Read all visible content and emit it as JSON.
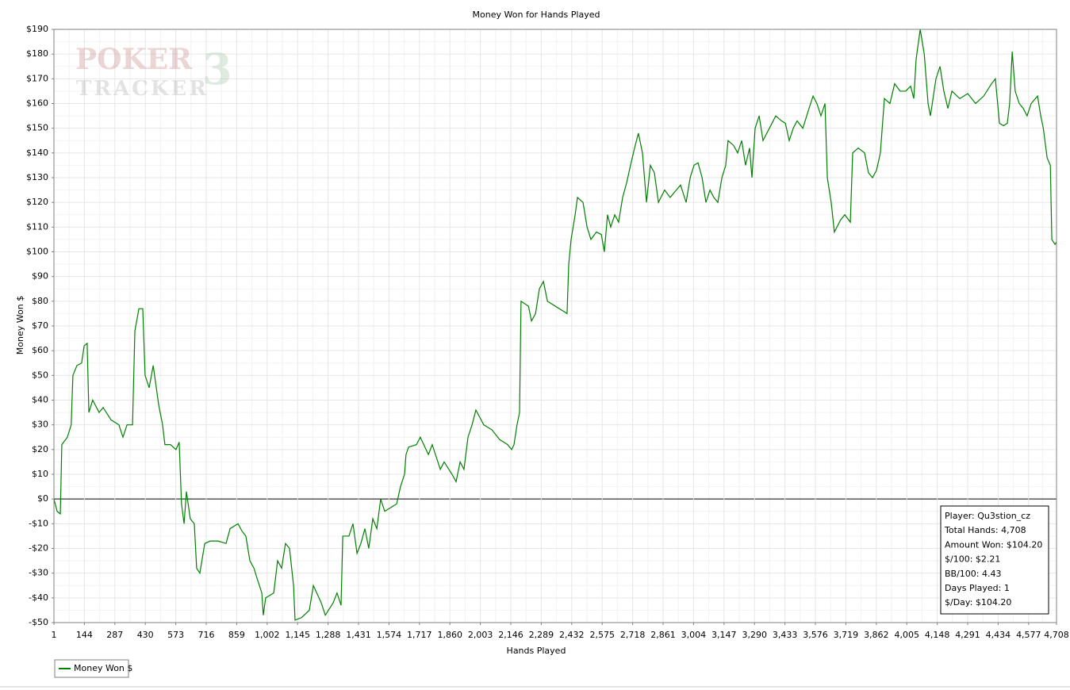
{
  "chart_data": {
    "type": "line",
    "title": "Money Won for Hands Played",
    "x_label": "Hands Played",
    "y_label": "Money Won $",
    "watermark": [
      "POKER",
      "TRACKER",
      "3"
    ],
    "info_box": [
      "Player: Qu3stion_cz",
      "Total Hands: 4,708",
      "Amount Won: $104.20",
      "$/100: $2.21",
      "BB/100: 4.43",
      "Days Played: 1",
      "$/Day: $104.20"
    ],
    "xlim": [
      1,
      4708
    ],
    "ylim": [
      -50,
      190
    ],
    "xticks": [
      1,
      144,
      287,
      430,
      573,
      716,
      859,
      {
        "value": 1002,
        "label": "1,002"
      },
      {
        "value": 1145,
        "label": "1,145"
      },
      {
        "value": 1288,
        "label": "1,288"
      },
      {
        "value": 1431,
        "label": "1,431"
      },
      {
        "value": 1574,
        "label": "1,574"
      },
      {
        "value": 1717,
        "label": "1,717"
      },
      {
        "value": 1860,
        "label": "1,860"
      },
      {
        "value": 2003,
        "label": "2,003"
      },
      {
        "value": 2146,
        "label": "2,146"
      },
      {
        "value": 2289,
        "label": "2,289"
      },
      {
        "value": 2432,
        "label": "2,432"
      },
      {
        "value": 2575,
        "label": "2,575"
      },
      {
        "value": 2718,
        "label": "2,718"
      },
      {
        "value": 2861,
        "label": "2,861"
      },
      {
        "value": 3004,
        "label": "3,004"
      },
      {
        "value": 3147,
        "label": "3,147"
      },
      {
        "value": 3290,
        "label": "3,290"
      },
      {
        "value": 3433,
        "label": "3,433"
      },
      {
        "value": 3576,
        "label": "3,576"
      },
      {
        "value": 3719,
        "label": "3,719"
      },
      {
        "value": 3862,
        "label": "3,862"
      },
      {
        "value": 4005,
        "label": "4,005"
      },
      {
        "value": 4148,
        "label": "4,148"
      },
      {
        "value": 4291,
        "label": "4,291"
      },
      {
        "value": 4434,
        "label": "4,434"
      },
      {
        "value": 4577,
        "label": "4,577"
      },
      {
        "value": 4708,
        "label": "4,708"
      }
    ],
    "yticks": [
      {
        "value": 190,
        "label": "$190"
      },
      {
        "value": 180,
        "label": "$180"
      },
      {
        "value": 170,
        "label": "$170"
      },
      {
        "value": 160,
        "label": "$160"
      },
      {
        "value": 150,
        "label": "$150"
      },
      {
        "value": 140,
        "label": "$140"
      },
      {
        "value": 130,
        "label": "$130"
      },
      {
        "value": 120,
        "label": "$120"
      },
      {
        "value": 110,
        "label": "$110"
      },
      {
        "value": 100,
        "label": "$100"
      },
      {
        "value": 90,
        "label": "$90"
      },
      {
        "value": 80,
        "label": "$80"
      },
      {
        "value": 70,
        "label": "$70"
      },
      {
        "value": 60,
        "label": "$60"
      },
      {
        "value": 50,
        "label": "$50"
      },
      {
        "value": 40,
        "label": "$40"
      },
      {
        "value": 30,
        "label": "$30"
      },
      {
        "value": 20,
        "label": "$20"
      },
      {
        "value": 10,
        "label": "$10"
      },
      {
        "value": 0,
        "label": "$0"
      },
      {
        "value": -10,
        "label": "-$10"
      },
      {
        "value": -20,
        "label": "-$20"
      },
      {
        "value": -30,
        "label": "-$30"
      },
      {
        "value": -40,
        "label": "-$40"
      },
      {
        "value": -50,
        "label": "-$50"
      }
    ],
    "grid": true,
    "legend": "bottom-left",
    "x": [
      1,
      16,
      31,
      38,
      64,
      82,
      90,
      109,
      131,
      143,
      157,
      165,
      183,
      213,
      232,
      269,
      306,
      325,
      344,
      370,
      381,
      400,
      418,
      429,
      448,
      467,
      493,
      511,
      522,
      548,
      574,
      589,
      600,
      612,
      623,
      641,
      660,
      671,
      686,
      709,
      735,
      772,
      809,
      828,
      865,
      884,
      902,
      921,
      940,
      958,
      977,
      984,
      995,
      1033,
      1051,
      1070,
      1088,
      1107,
      1126,
      1133,
      1163,
      1200,
      1219,
      1256,
      1275,
      1312,
      1330,
      1349,
      1357,
      1386,
      1405,
      1424,
      1442,
      1461,
      1479,
      1498,
      1517,
      1535,
      1554,
      1591,
      1610,
      1628,
      1647,
      1654,
      1666,
      1703,
      1721,
      1759,
      1777,
      1815,
      1833,
      1870,
      1889,
      1908,
      1926,
      1945,
      1964,
      1982,
      2019,
      2057,
      2094,
      2131,
      2150,
      2161,
      2175,
      2187,
      2194,
      2229,
      2243,
      2262,
      2280,
      2299,
      2318,
      2355,
      2392,
      2410,
      2418,
      2429,
      2448,
      2459,
      2485,
      2504,
      2522,
      2548,
      2571,
      2585,
      2600,
      2615,
      2634,
      2652,
      2671,
      2690,
      2708,
      2727,
      2745,
      2764,
      2783,
      2801,
      2820,
      2839,
      2868,
      2894,
      2913,
      2943,
      2969,
      2988,
      3006,
      3025,
      3044,
      3062,
      3081,
      3099,
      3118,
      3137,
      3155,
      3166,
      3192,
      3211,
      3230,
      3248,
      3267,
      3278,
      3293,
      3312,
      3330,
      3360,
      3390,
      3416,
      3435,
      3453,
      3472,
      3490,
      3517,
      3546,
      3565,
      3583,
      3602,
      3621,
      3632,
      3650,
      3665,
      3695,
      3714,
      3740,
      3751,
      3777,
      3807,
      3825,
      3844,
      3863,
      3881,
      3900,
      3926,
      3948,
      3974,
      4000,
      4023,
      4038,
      4049,
      4068,
      4087,
      4105,
      4116,
      4142,
      4161,
      4179,
      4198,
      4217,
      4254,
      4291,
      4328,
      4366,
      4403,
      4421,
      4440,
      4459,
      4477,
      4488,
      4500,
      4514,
      4533,
      4552,
      4570,
      4589,
      4619,
      4634,
      4646,
      4664,
      4679,
      4686,
      4701,
      4708
    ],
    "series": [
      {
        "name": "Money Won $",
        "color": "#008000",
        "values": [
          0,
          -5,
          -6,
          22,
          25,
          30,
          50,
          54,
          55,
          62,
          63,
          35,
          40,
          35,
          37,
          32,
          30,
          25,
          30,
          30,
          68,
          77,
          77,
          50,
          45,
          54,
          38,
          30,
          22,
          22,
          20,
          23,
          -2,
          -10,
          3,
          -8,
          -10,
          -28,
          -30,
          -18,
          -17,
          -17,
          -18,
          -12,
          -10,
          -13,
          -15,
          -25,
          -28,
          -33,
          -38,
          -47,
          -40,
          -38,
          -25,
          -28,
          -18,
          -20,
          -35,
          -49,
          -48,
          -45,
          -35,
          -42,
          -47,
          -42,
          -38,
          -43,
          -15,
          -15,
          -10,
          -22,
          -18,
          -12,
          -20,
          -8,
          -12,
          0,
          -5,
          -3,
          -2,
          5,
          10,
          18,
          21,
          22,
          25,
          18,
          22,
          12,
          15,
          10,
          7,
          15,
          12,
          25,
          30,
          36,
          30,
          28,
          24,
          22,
          20,
          22,
          30,
          35,
          80,
          78,
          72,
          75,
          85,
          88,
          80,
          78,
          76,
          75,
          95,
          105,
          115,
          122,
          120,
          110,
          105,
          108,
          107,
          100,
          115,
          110,
          115,
          112,
          122,
          128,
          135,
          142,
          148,
          140,
          120,
          135,
          132,
          120,
          125,
          122,
          124,
          127,
          120,
          130,
          135,
          136,
          130,
          120,
          125,
          122,
          120,
          130,
          135,
          145,
          143,
          140,
          145,
          135,
          142,
          130,
          150,
          155,
          145,
          150,
          155,
          153,
          152,
          145,
          150,
          153,
          150,
          158,
          163,
          160,
          155,
          160,
          130,
          120,
          108,
          113,
          115,
          112,
          140,
          142,
          140,
          132,
          130,
          133,
          140,
          162,
          160,
          168,
          165,
          165,
          167,
          162,
          178,
          190,
          180,
          160,
          155,
          170,
          175,
          165,
          158,
          165,
          162,
          164,
          160,
          163,
          168,
          170,
          152,
          151,
          152,
          160,
          181,
          165,
          160,
          158,
          155,
          160,
          163,
          155,
          150,
          138,
          135,
          105,
          103,
          104
        ]
      }
    ]
  }
}
